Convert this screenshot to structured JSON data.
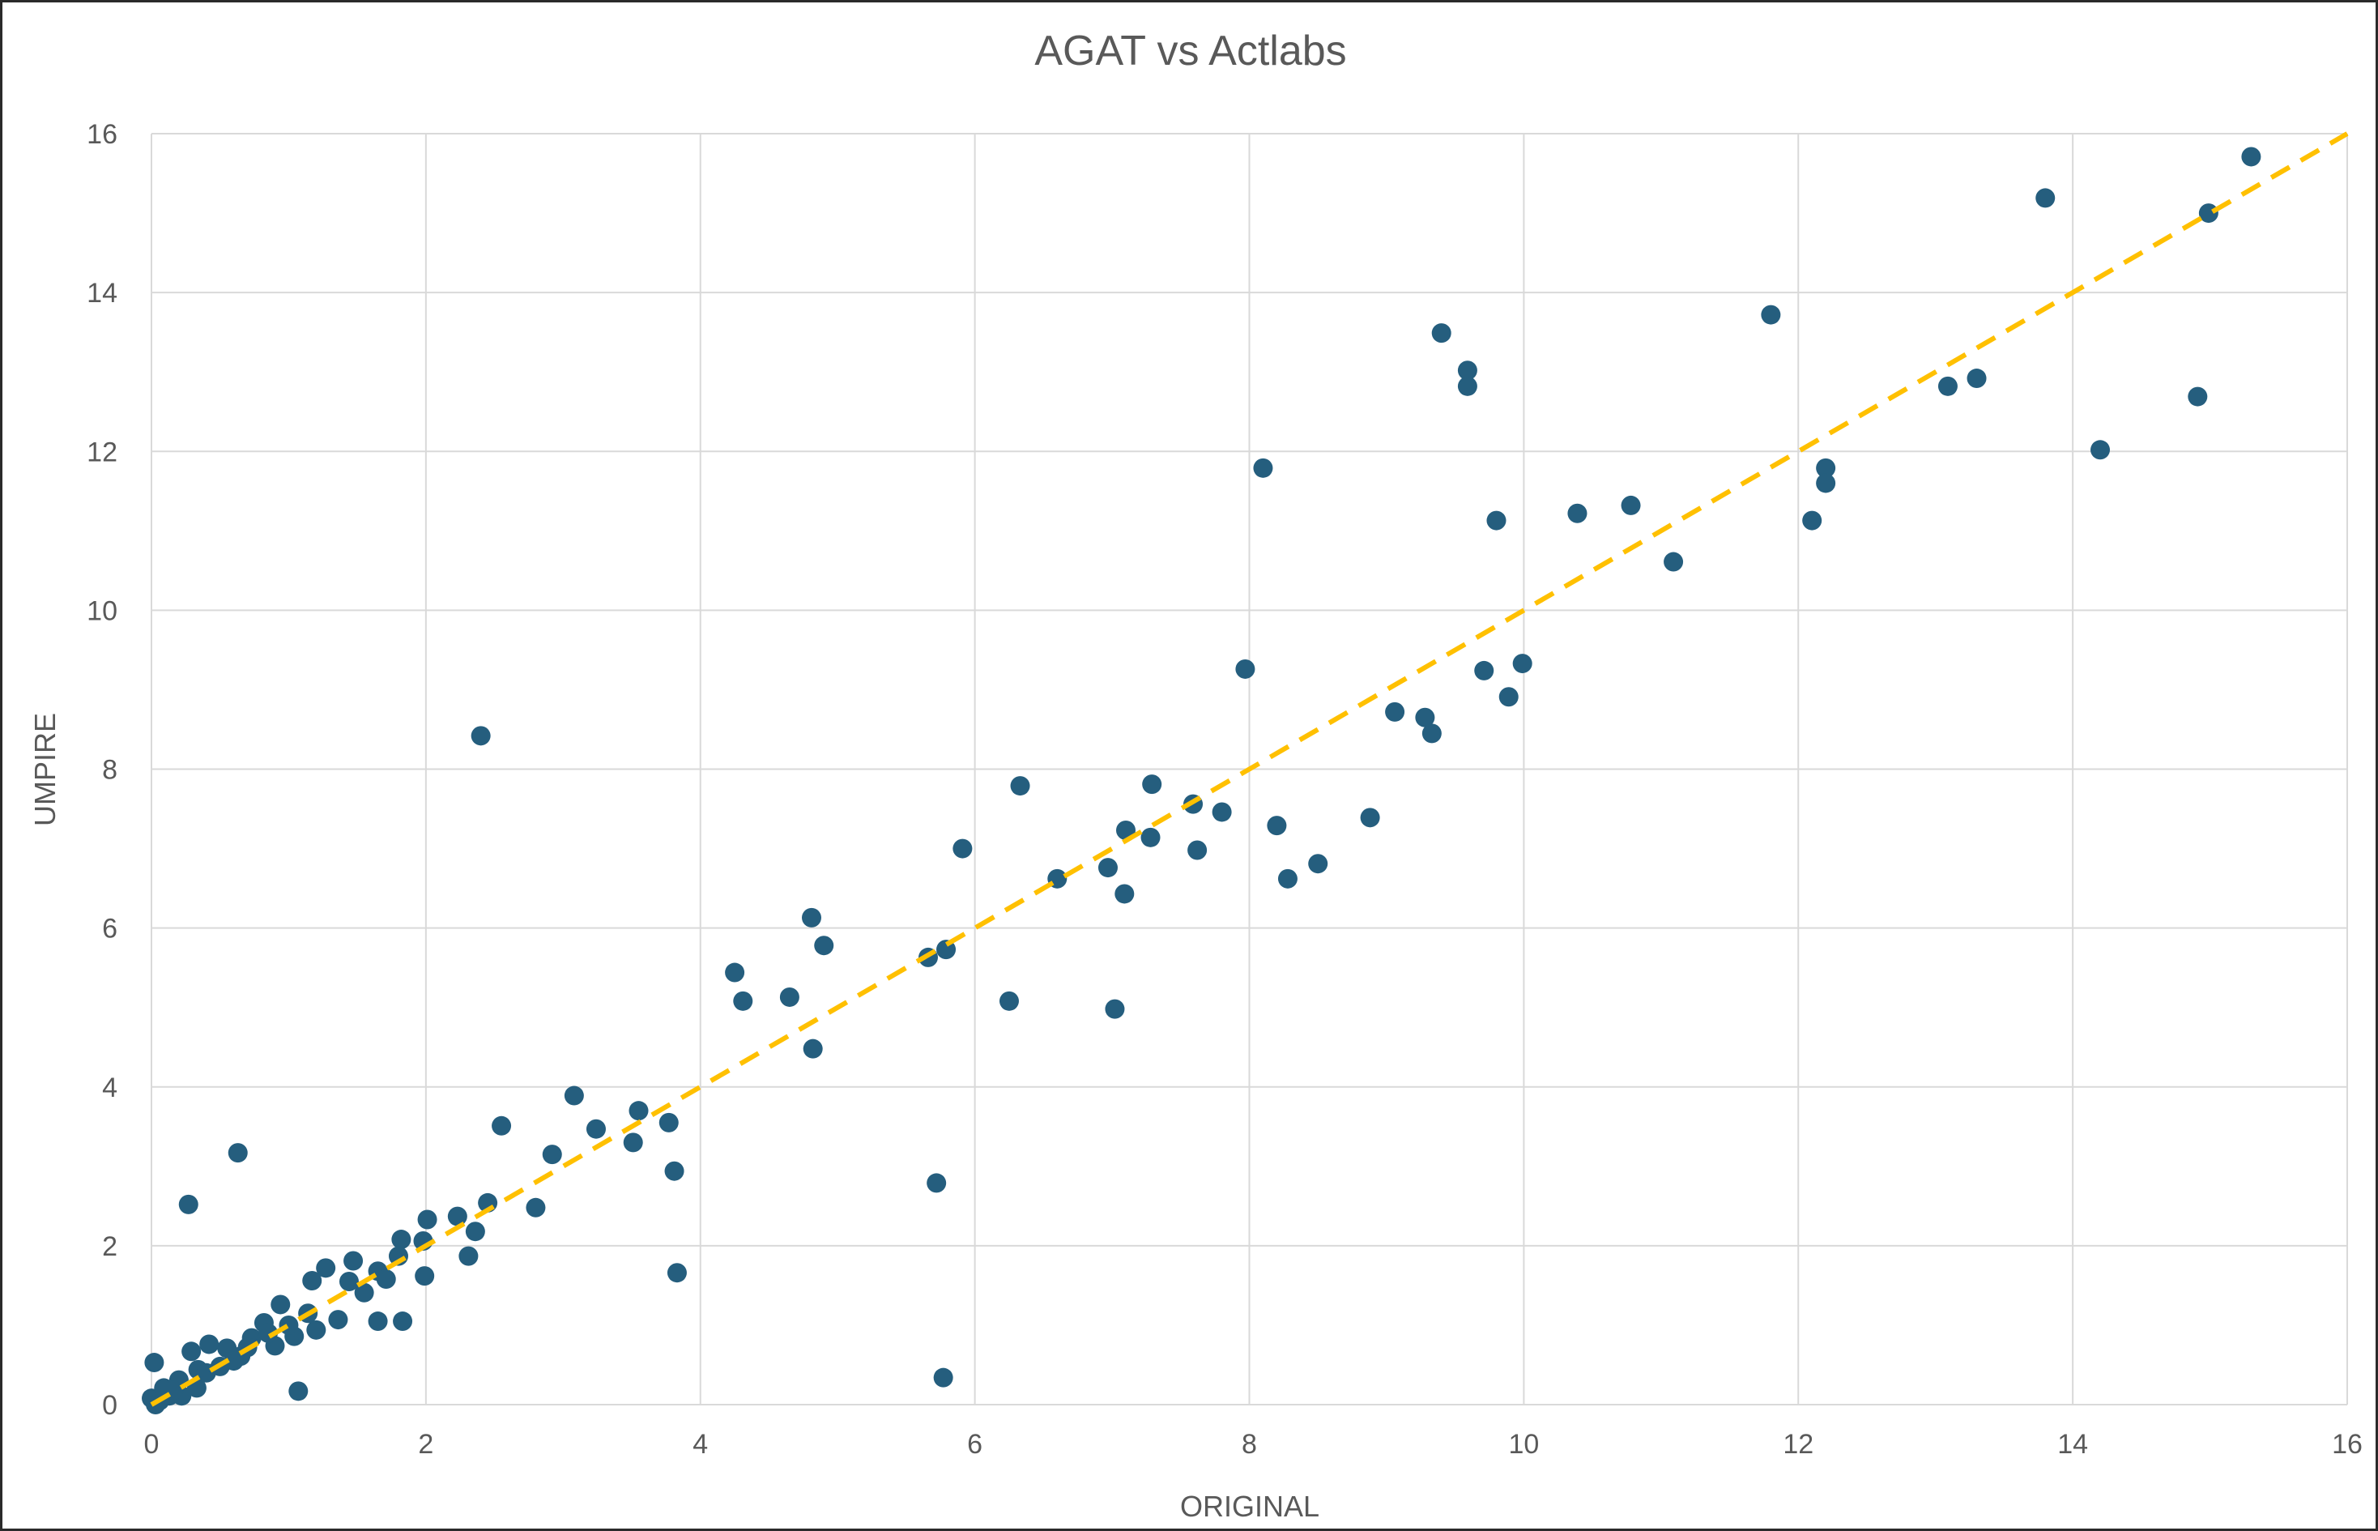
{
  "chart_data": {
    "type": "scatter",
    "title": "AGAT vs Actlabs",
    "xlabel": "ORIGINAL",
    "ylabel": "UMPIRE",
    "xlim": [
      0,
      16
    ],
    "ylim": [
      0,
      16
    ],
    "xticks": [
      0,
      2,
      4,
      6,
      8,
      10,
      12,
      14,
      16
    ],
    "yticks": [
      0,
      2,
      4,
      6,
      8,
      10,
      12,
      14,
      16
    ],
    "grid": true,
    "legend": "none",
    "marker_color": "#255E7E",
    "trendline": {
      "style": "dashed",
      "color": "#FFC000",
      "from": [
        0,
        0
      ],
      "to": [
        16,
        16
      ]
    },
    "points": [
      [
        15.3,
        15.71
      ],
      [
        13.8,
        15.19
      ],
      [
        14.99,
        15.0
      ],
      [
        14.91,
        12.69
      ],
      [
        14.2,
        12.02
      ],
      [
        13.3,
        12.92
      ],
      [
        13.09,
        12.82
      ],
      [
        11.8,
        13.72
      ],
      [
        12.2,
        11.79
      ],
      [
        12.2,
        11.6
      ],
      [
        12.1,
        11.13
      ],
      [
        11.09,
        10.61
      ],
      [
        10.78,
        11.32
      ],
      [
        10.39,
        11.22
      ],
      [
        9.4,
        13.49
      ],
      [
        9.59,
        13.02
      ],
      [
        9.59,
        12.82
      ],
      [
        9.8,
        11.13
      ],
      [
        8.1,
        11.79
      ],
      [
        9.99,
        9.33
      ],
      [
        9.71,
        9.24
      ],
      [
        9.89,
        8.91
      ],
      [
        9.06,
        8.72
      ],
      [
        9.28,
        8.65
      ],
      [
        9.33,
        8.45
      ],
      [
        7.97,
        9.26
      ],
      [
        8.88,
        7.39
      ],
      [
        8.5,
        6.81
      ],
      [
        8.28,
        6.62
      ],
      [
        8.2,
        7.29
      ],
      [
        7.8,
        7.46
      ],
      [
        7.59,
        7.56
      ],
      [
        7.62,
        6.98
      ],
      [
        7.29,
        7.81
      ],
      [
        7.28,
        7.14
      ],
      [
        7.1,
        7.23
      ],
      [
        7.09,
        6.43
      ],
      [
        6.97,
        6.76
      ],
      [
        7.02,
        4.98
      ],
      [
        6.6,
        6.62
      ],
      [
        6.33,
        7.79
      ],
      [
        6.25,
        5.08
      ],
      [
        5.91,
        7.0
      ],
      [
        5.79,
        5.73
      ],
      [
        5.66,
        5.63
      ],
      [
        5.72,
        2.79
      ],
      [
        5.77,
        0.34
      ],
      [
        4.81,
        6.13
      ],
      [
        4.9,
        5.78
      ],
      [
        4.65,
        5.13
      ],
      [
        4.82,
        4.48
      ],
      [
        4.25,
        5.44
      ],
      [
        4.31,
        5.08
      ],
      [
        2.4,
        8.42
      ],
      [
        3.08,
        3.89
      ],
      [
        3.55,
        3.7
      ],
      [
        3.77,
        3.55
      ],
      [
        3.81,
        2.94
      ],
      [
        3.83,
        1.66
      ],
      [
        3.51,
        3.3
      ],
      [
        3.24,
        3.47
      ],
      [
        2.92,
        3.15
      ],
      [
        2.55,
        3.51
      ],
      [
        2.8,
        2.48
      ],
      [
        2.45,
        2.54
      ],
      [
        2.23,
        2.37
      ],
      [
        2.36,
        2.18
      ],
      [
        2.31,
        1.87
      ],
      [
        2.01,
        2.33
      ],
      [
        1.98,
        2.06
      ],
      [
        1.99,
        1.62
      ],
      [
        1.82,
        2.08
      ],
      [
        1.8,
        1.87
      ],
      [
        1.65,
        1.68
      ],
      [
        1.71,
        1.58
      ],
      [
        1.83,
        1.05
      ],
      [
        1.65,
        1.05
      ],
      [
        1.55,
        1.41
      ],
      [
        1.47,
        1.81
      ],
      [
        1.44,
        1.55
      ],
      [
        1.27,
        1.72
      ],
      [
        1.17,
        1.56
      ],
      [
        1.36,
        1.07
      ],
      [
        1.2,
        0.94
      ],
      [
        1.14,
        1.15
      ],
      [
        1.07,
        0.17
      ],
      [
        0.94,
        1.26
      ],
      [
        1.04,
        0.86
      ],
      [
        0.9,
        0.74
      ],
      [
        0.82,
        1.03
      ],
      [
        0.73,
        0.84
      ],
      [
        0.63,
        3.17
      ],
      [
        0.27,
        2.52
      ],
      [
        0.65,
        0.61
      ],
      [
        0.55,
        0.71
      ],
      [
        0.42,
        0.76
      ],
      [
        0.29,
        0.67
      ],
      [
        0.5,
        0.48
      ],
      [
        0.34,
        0.44
      ],
      [
        0.33,
        0.21
      ],
      [
        0.2,
        0.31
      ],
      [
        0.02,
        0.53
      ],
      [
        0.09,
        0.21
      ],
      [
        0.0,
        0.08
      ],
      [
        0.13,
        0.11
      ],
      [
        0.22,
        0.11
      ],
      [
        0.03,
        0.0
      ],
      [
        0.06,
        0.05
      ],
      [
        0.16,
        0.18
      ],
      [
        0.4,
        0.4
      ],
      [
        0.6,
        0.55
      ],
      [
        0.7,
        0.72
      ],
      [
        0.85,
        0.9
      ],
      [
        1.0,
        1.0
      ]
    ]
  }
}
